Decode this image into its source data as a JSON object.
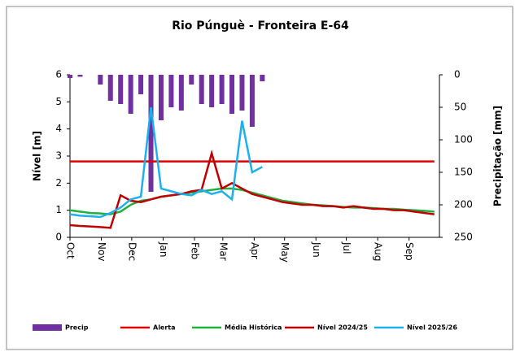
{
  "chart_data": {
    "type": "line",
    "title": "Rio Púnguè - Fronteira E-64",
    "ylabel": "Nível [m]",
    "y2label": "Precipitação [mm]",
    "x": [
      0,
      10,
      20,
      30,
      40,
      50,
      60,
      70,
      80,
      90,
      100,
      110,
      120,
      130,
      140,
      150,
      160,
      170,
      180,
      190,
      200,
      210,
      220,
      230,
      240,
      250,
      260,
      270,
      280,
      290,
      300,
      310,
      320,
      330,
      340,
      350,
      360
    ],
    "xlim": [
      0,
      365
    ],
    "xticks": [
      {
        "value": 0,
        "label": "Oct"
      },
      {
        "value": 31,
        "label": "Nov"
      },
      {
        "value": 61,
        "label": "Dec"
      },
      {
        "value": 92,
        "label": "Jan"
      },
      {
        "value": 123,
        "label": "Feb"
      },
      {
        "value": 151,
        "label": "Mar"
      },
      {
        "value": 182,
        "label": "Apr"
      },
      {
        "value": 212,
        "label": "May"
      },
      {
        "value": 243,
        "label": "Jun"
      },
      {
        "value": 273,
        "label": "Jul"
      },
      {
        "value": 304,
        "label": "Aug"
      },
      {
        "value": 335,
        "label": "Sep"
      }
    ],
    "ylim": [
      0,
      6
    ],
    "yticks": [
      0,
      1,
      2,
      3,
      4,
      5,
      6
    ],
    "y2lim": [
      250,
      0
    ],
    "y2ticks": [
      0,
      50,
      100,
      150,
      200,
      250
    ],
    "series": [
      {
        "name": "Precip",
        "type": "bar",
        "axis": "y2",
        "color": "#7030a0",
        "values": [
          5,
          3,
          0,
          15,
          40,
          45,
          60,
          30,
          180,
          70,
          50,
          55,
          15,
          45,
          50,
          45,
          60,
          55,
          80,
          10,
          0,
          0,
          0,
          0,
          0,
          0,
          0,
          0,
          0,
          0,
          0,
          0,
          0,
          0,
          0,
          0,
          0
        ]
      },
      {
        "name": "Alerta",
        "color": "#e00000",
        "values": [
          2.8,
          2.8,
          2.8,
          2.8,
          2.8,
          2.8,
          2.8,
          2.8,
          2.8,
          2.8,
          2.8,
          2.8,
          2.8,
          2.8,
          2.8,
          2.8,
          2.8,
          2.8,
          2.8,
          2.8,
          2.8,
          2.8,
          2.8,
          2.8,
          2.8,
          2.8,
          2.8,
          2.8,
          2.8,
          2.8,
          2.8,
          2.8,
          2.8,
          2.8,
          2.8,
          2.8,
          2.8
        ]
      },
      {
        "name": "Média Histórica",
        "color": "#1fb040",
        "values": [
          1.0,
          0.95,
          0.9,
          0.88,
          0.85,
          0.95,
          1.2,
          1.35,
          1.4,
          1.5,
          1.55,
          1.6,
          1.65,
          1.7,
          1.75,
          1.8,
          1.8,
          1.75,
          1.65,
          1.55,
          1.45,
          1.35,
          1.3,
          1.25,
          1.2,
          1.18,
          1.15,
          1.12,
          1.1,
          1.1,
          1.08,
          1.05,
          1.05,
          1.02,
          1.0,
          0.98,
          0.95
        ]
      },
      {
        "name": "Nível 2024/25",
        "color": "#c00000",
        "values": [
          0.45,
          0.42,
          0.4,
          0.38,
          0.35,
          1.55,
          1.35,
          1.3,
          1.4,
          1.5,
          1.55,
          1.6,
          1.7,
          1.75,
          3.1,
          1.8,
          2.0,
          1.8,
          1.6,
          1.5,
          1.4,
          1.3,
          1.25,
          1.2,
          1.2,
          1.15,
          1.15,
          1.1,
          1.15,
          1.1,
          1.05,
          1.05,
          1.0,
          1.0,
          0.95,
          0.9,
          0.85
        ]
      },
      {
        "name": "Nível 2025/26",
        "color": "#1cb0f0",
        "values": [
          0.85,
          0.8,
          0.78,
          0.75,
          0.9,
          1.1,
          1.4,
          1.5,
          4.8,
          1.8,
          1.7,
          1.6,
          1.55,
          1.75,
          1.6,
          1.7,
          1.4,
          4.3,
          2.4,
          2.6,
          null,
          null,
          null,
          null,
          null,
          null,
          null,
          null,
          null,
          null,
          null,
          null,
          null,
          null,
          null,
          null,
          null
        ]
      }
    ]
  }
}
